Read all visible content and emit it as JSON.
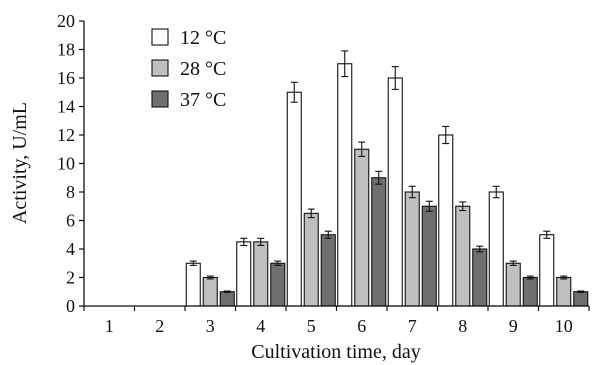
{
  "chart_data": {
    "type": "bar",
    "title": "",
    "xlabel": "Cultivation time, day",
    "ylabel": "Activity, U/mL",
    "categories": [
      "1",
      "2",
      "3",
      "4",
      "5",
      "6",
      "7",
      "8",
      "9",
      "10"
    ],
    "ylim": [
      0,
      20
    ],
    "yticks": [
      "0",
      "2",
      "4",
      "6",
      "8",
      "10",
      "12",
      "14",
      "16",
      "18",
      "20"
    ],
    "grid": false,
    "legend_position": "top-left",
    "series": [
      {
        "name": "12 °C",
        "color": "#ffffff",
        "values": [
          0,
          0,
          3.0,
          4.5,
          15.0,
          17.0,
          16.0,
          12.0,
          8.0,
          5.0
        ],
        "errors": [
          0,
          0,
          0.15,
          0.25,
          0.7,
          0.9,
          0.8,
          0.6,
          0.4,
          0.25
        ]
      },
      {
        "name": "28 °C",
        "color": "#bfbfbf",
        "values": [
          0,
          0,
          2.0,
          4.5,
          6.5,
          11.0,
          8.0,
          7.0,
          3.0,
          2.0
        ],
        "errors": [
          0,
          0,
          0.1,
          0.25,
          0.3,
          0.5,
          0.4,
          0.3,
          0.15,
          0.1
        ]
      },
      {
        "name": "37 °C",
        "color": "#6f6f6f",
        "values": [
          0,
          0,
          1.0,
          3.0,
          5.0,
          9.0,
          7.0,
          4.0,
          2.0,
          1.0
        ],
        "errors": [
          0,
          0,
          0.05,
          0.15,
          0.25,
          0.45,
          0.35,
          0.2,
          0.1,
          0.05
        ]
      }
    ]
  }
}
